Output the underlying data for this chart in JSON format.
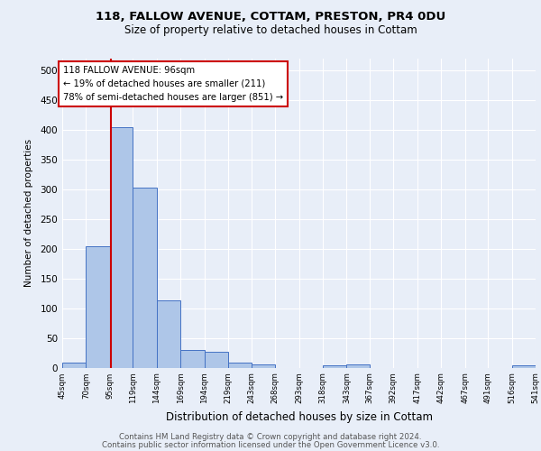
{
  "title1": "118, FALLOW AVENUE, COTTAM, PRESTON, PR4 0DU",
  "title2": "Size of property relative to detached houses in Cottam",
  "xlabel": "Distribution of detached houses by size in Cottam",
  "ylabel": "Number of detached properties",
  "footer1": "Contains HM Land Registry data © Crown copyright and database right 2024.",
  "footer2": "Contains public sector information licensed under the Open Government Licence v3.0.",
  "annotation_line1": "118 FALLOW AVENUE: 96sqm",
  "annotation_line2": "← 19% of detached houses are smaller (211)",
  "annotation_line3": "78% of semi-detached houses are larger (851) →",
  "property_size": 96,
  "bar_edges": [
    45,
    70,
    95,
    119,
    144,
    169,
    194,
    219,
    243,
    268,
    293,
    318,
    343,
    367,
    392,
    417,
    442,
    467,
    491,
    516,
    541
  ],
  "bar_heights": [
    9,
    204,
    404,
    303,
    113,
    30,
    27,
    9,
    5,
    0,
    0,
    4,
    5,
    0,
    0,
    0,
    0,
    0,
    0,
    4
  ],
  "bar_color": "#aec6e8",
  "bar_edge_color": "#4472c4",
  "vline_color": "#cc0000",
  "vline_x": 96,
  "bg_color": "#e8eef8",
  "annotation_box_color": "#ffffff",
  "annotation_box_edge": "#cc0000",
  "ylim": [
    0,
    520
  ],
  "yticks": [
    0,
    50,
    100,
    150,
    200,
    250,
    300,
    350,
    400,
    450,
    500
  ]
}
